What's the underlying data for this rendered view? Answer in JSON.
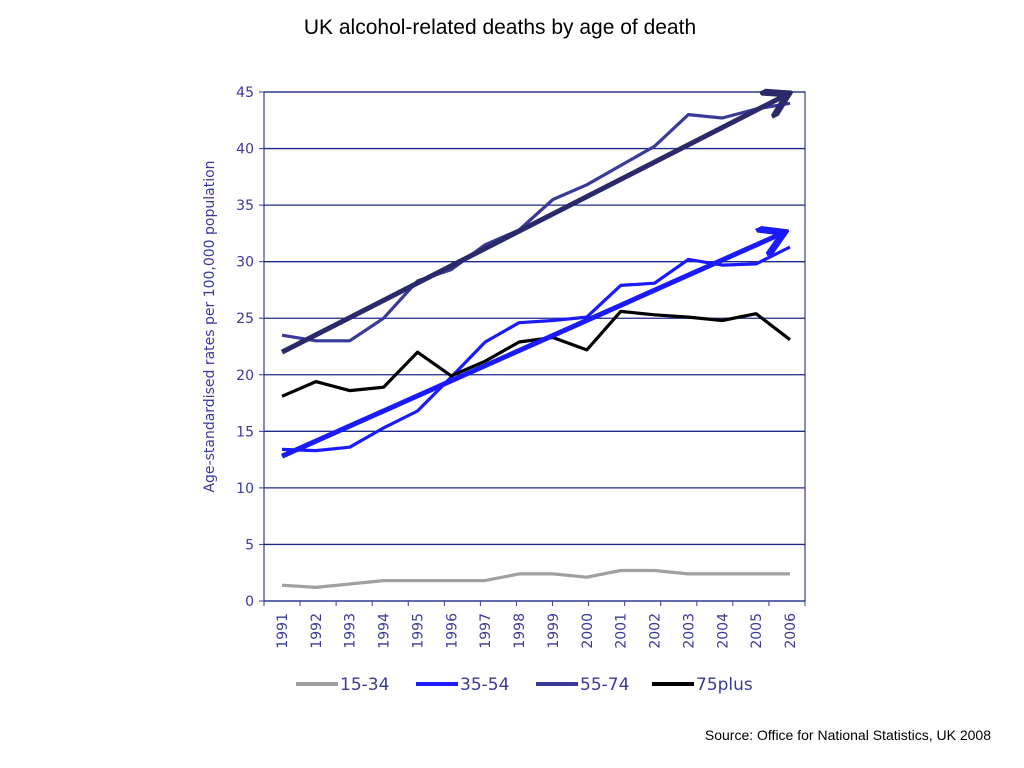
{
  "title": "UK alcohol-related deaths by age of death",
  "source": "Source: Office for National Statistics, UK 2008",
  "chart_data": {
    "type": "line",
    "title": "UK alcohol-related deaths by age of death",
    "xlabel": "",
    "ylabel": "Age-standardised rates per 100,000 population",
    "ylim": [
      0,
      45
    ],
    "yticks": [
      0,
      5,
      10,
      15,
      20,
      25,
      30,
      35,
      40,
      45
    ],
    "grid": true,
    "legend": "bottom",
    "categories": [
      "1991",
      "1992",
      "1993",
      "1994",
      "1995",
      "1996",
      "1997",
      "1998",
      "1999",
      "2000",
      "2001",
      "2002",
      "2003",
      "2004",
      "2005",
      "2006"
    ],
    "series": [
      {
        "name": "15-34",
        "color": "#a0a0a0",
        "values": [
          1.4,
          1.2,
          1.5,
          1.8,
          1.8,
          1.8,
          1.8,
          2.4,
          2.4,
          2.1,
          2.7,
          2.7,
          2.4,
          2.4,
          2.4,
          2.4
        ]
      },
      {
        "name": "35-54",
        "color": "#1a1aff",
        "values": [
          13.4,
          13.3,
          13.6,
          15.3,
          16.8,
          19.8,
          22.9,
          24.6,
          24.8,
          25.1,
          27.9,
          28.1,
          30.2,
          29.7,
          29.8,
          31.3
        ]
      },
      {
        "name": "55-74",
        "color": "#3a3a9a",
        "values": [
          23.5,
          23.0,
          23.0,
          25.0,
          28.3,
          29.3,
          31.5,
          32.8,
          35.5,
          36.8,
          38.5,
          40.2,
          43.0,
          42.7,
          43.5,
          44.0
        ]
      },
      {
        "name": "75plus",
        "color": "#000000",
        "values": [
          18.1,
          19.4,
          18.6,
          18.9,
          22.0,
          19.9,
          21.2,
          22.9,
          23.3,
          22.2,
          25.6,
          25.3,
          25.1,
          24.8,
          25.4,
          23.1
        ]
      }
    ],
    "trend_arrows": [
      {
        "series": "55-74",
        "color": "#2a2a6a",
        "from": [
          "1991",
          22.0
        ],
        "to": "end-top"
      },
      {
        "series": "35-54",
        "color": "#1a1aff",
        "from": [
          "1991",
          12.8
        ],
        "to": "end-mid"
      }
    ]
  }
}
